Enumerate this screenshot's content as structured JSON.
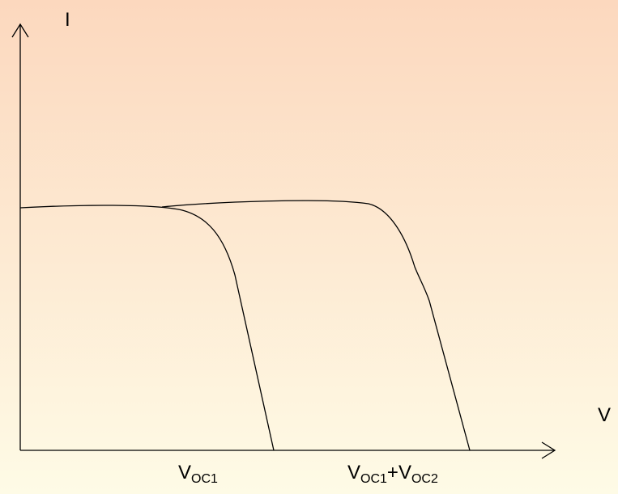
{
  "axes": {
    "y_label": "I",
    "x_label": "V"
  },
  "markers": [
    {
      "parts": [
        {
          "text": "V"
        },
        {
          "text": "OC1",
          "sub": true
        }
      ]
    },
    {
      "parts": [
        {
          "text": "V"
        },
        {
          "text": "OC1",
          "sub": true
        },
        {
          "text": "+"
        },
        {
          "text": "V"
        },
        {
          "text": "OC2",
          "sub": true
        }
      ]
    }
  ]
}
